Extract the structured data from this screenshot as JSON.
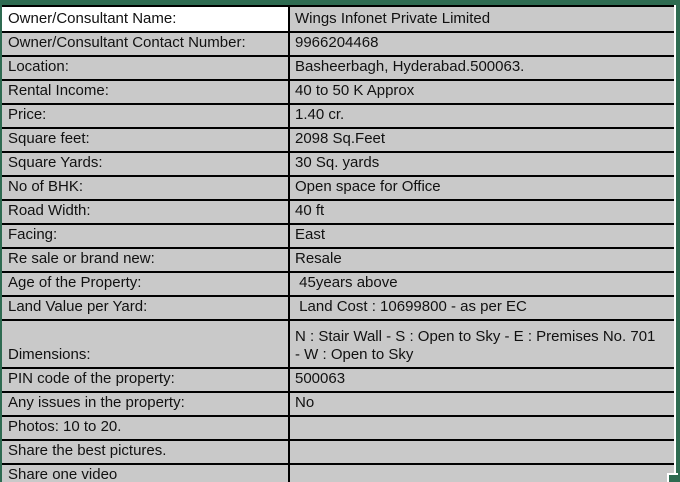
{
  "colors": {
    "selection_border_green": "#2e6b51",
    "cell_fill_gray": "#c9c9c9",
    "active_cell_white": "#ffffff",
    "grid_border_black": "#000000"
  },
  "table": {
    "rows": [
      {
        "label": "Owner/Consultant Name:",
        "value": "Wings Infonet Private Limited",
        "highlight": true,
        "tall": false
      },
      {
        "label": "Owner/Consultant Contact Number:",
        "value": "9966204468",
        "highlight": false,
        "tall": false
      },
      {
        "label": "Location:",
        "value": "Basheerbagh, Hyderabad.500063.",
        "highlight": false,
        "tall": false
      },
      {
        "label": "Rental Income:",
        "value": "40 to 50 K Approx",
        "highlight": false,
        "tall": false
      },
      {
        "label": "Price:",
        "value": "1.40 cr.",
        "highlight": false,
        "tall": false
      },
      {
        "label": "Square feet:",
        "value": "2098 Sq.Feet",
        "highlight": false,
        "tall": false
      },
      {
        "label": "Square Yards:",
        "value": "30 Sq. yards",
        "highlight": false,
        "tall": false
      },
      {
        "label": "No of BHK:",
        "value": "Open space for Office",
        "highlight": false,
        "tall": false
      },
      {
        "label": "Road Width:",
        "value": "40 ft",
        "highlight": false,
        "tall": false
      },
      {
        "label": "Facing:",
        "value": "East",
        "highlight": false,
        "tall": false
      },
      {
        "label": "Re sale or brand new:",
        "value": "Resale",
        "highlight": false,
        "tall": false
      },
      {
        "label": "Age of the Property:",
        "value": " 45years above",
        "highlight": false,
        "tall": false
      },
      {
        "label": "Land Value per Yard:",
        "value": " Land Cost : 10699800 - as per EC",
        "highlight": false,
        "tall": false
      },
      {
        "label": "Dimensions:",
        "value": "N : Stair Wall - S : Open to Sky - E : Premises No. 701\n- W : Open to Sky",
        "highlight": false,
        "tall": true
      },
      {
        "label": "PIN code of the property:",
        "value": "500063",
        "highlight": false,
        "tall": false
      },
      {
        "label": "Any issues in the property:",
        "value": "No",
        "highlight": false,
        "tall": false
      },
      {
        "label": "Photos: 10 to 20.",
        "value": "",
        "highlight": false,
        "tall": false
      },
      {
        "label": "Share the best pictures.",
        "value": "",
        "highlight": false,
        "tall": false
      },
      {
        "label": "Share one video",
        "value": "",
        "highlight": false,
        "tall": false
      }
    ]
  }
}
